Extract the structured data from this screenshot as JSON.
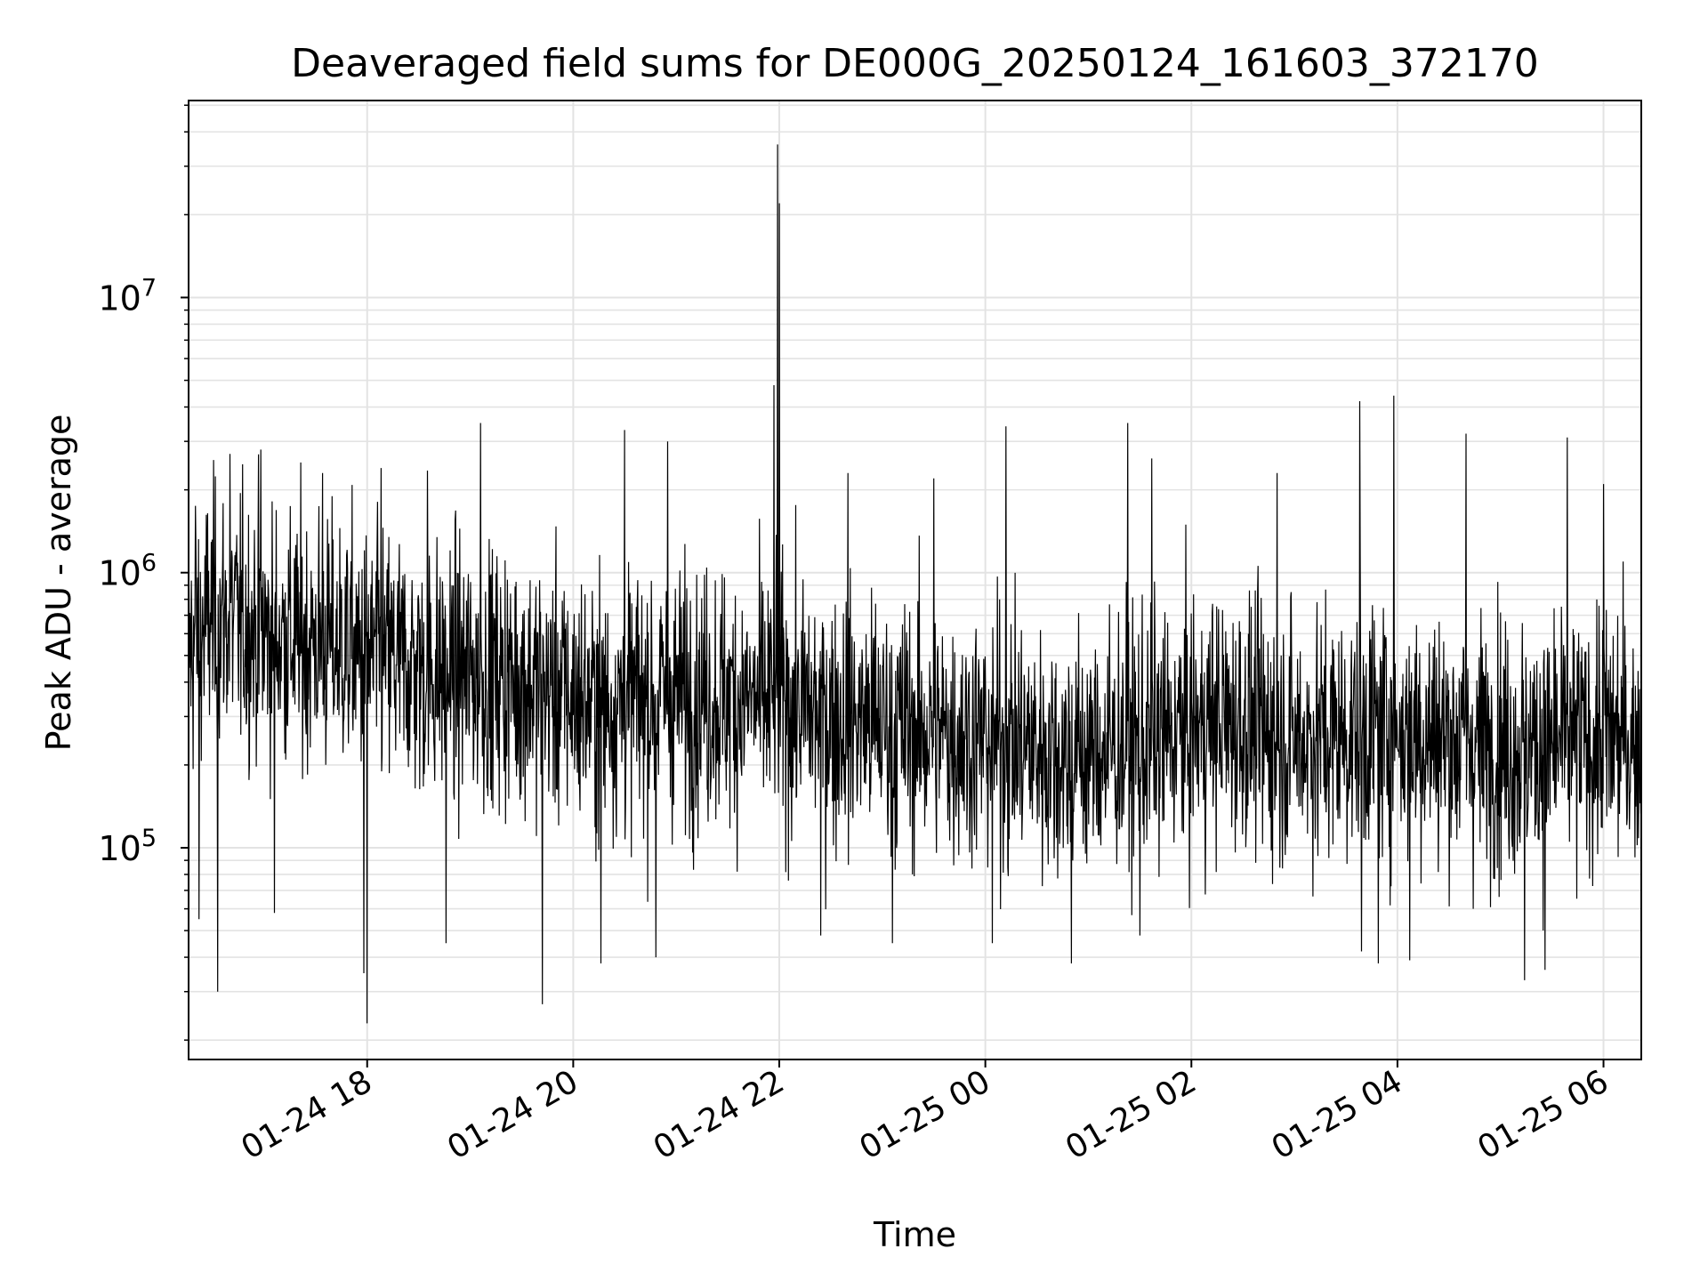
{
  "chart_data": {
    "type": "line",
    "title": "Deaveraged field sums for DE000G_20250124_161603_372170",
    "xlabel": "Time",
    "ylabel": "Peak ADU - average",
    "y_scale": "log",
    "ylim": [
      17000,
      52000000
    ],
    "xlim": [
      "2025-01-24 16:16",
      "2025-01-25 06:22"
    ],
    "grid": true,
    "line_color": "#000000",
    "grid_color": "#e3e3e3",
    "x_ticks": [
      {
        "label": "01-24 18",
        "value": "2025-01-24 18:00"
      },
      {
        "label": "01-24 20",
        "value": "2025-01-24 20:00"
      },
      {
        "label": "01-24 22",
        "value": "2025-01-24 22:00"
      },
      {
        "label": "01-25 00",
        "value": "2025-01-25 00:00"
      },
      {
        "label": "01-25 02",
        "value": "2025-01-25 02:00"
      },
      {
        "label": "01-25 04",
        "value": "2025-01-25 04:00"
      },
      {
        "label": "01-25 06",
        "value": "2025-01-25 06:00"
      }
    ],
    "y_ticks": [
      {
        "base": "10",
        "exp": "5",
        "value": 100000
      },
      {
        "base": "10",
        "exp": "6",
        "value": 1000000
      },
      {
        "base": "10",
        "exp": "7",
        "value": 10000000
      }
    ],
    "series": [
      {
        "points": [
          [
            "2025-01-24 16:16",
            520000
          ],
          [
            "2025-01-24 16:30",
            700000
          ],
          [
            "2025-01-24 16:45",
            650000
          ],
          [
            "2025-01-24 17:00",
            600000
          ],
          [
            "2025-01-24 17:15",
            580000
          ],
          [
            "2025-01-24 17:30",
            560000
          ],
          [
            "2025-01-24 17:45",
            540000
          ],
          [
            "2025-01-24 18:00",
            500000
          ],
          [
            "2025-01-24 18:15",
            480000
          ],
          [
            "2025-01-24 18:30",
            450000
          ],
          [
            "2025-01-24 18:45",
            430000
          ],
          [
            "2025-01-24 19:00",
            420000
          ],
          [
            "2025-01-24 19:15",
            420000
          ],
          [
            "2025-01-24 19:30",
            400000
          ],
          [
            "2025-01-24 19:45",
            380000
          ],
          [
            "2025-01-24 20:00",
            350000
          ],
          [
            "2025-01-24 20:15",
            330000
          ],
          [
            "2025-01-24 20:30",
            340000
          ],
          [
            "2025-01-24 20:45",
            350000
          ],
          [
            "2025-01-24 21:00",
            360000
          ],
          [
            "2025-01-24 21:15",
            360000
          ],
          [
            "2025-01-24 21:30",
            350000
          ],
          [
            "2025-01-24 21:45",
            340000
          ],
          [
            "2025-01-24 22:00",
            330000
          ],
          [
            "2025-01-24 22:15",
            320000
          ],
          [
            "2025-01-24 22:30",
            300000
          ],
          [
            "2025-01-24 22:45",
            290000
          ],
          [
            "2025-01-24 23:00",
            280000
          ],
          [
            "2025-01-24 23:15",
            270000
          ],
          [
            "2025-01-24 23:30",
            260000
          ],
          [
            "2025-01-24 23:45",
            260000
          ],
          [
            "2025-01-25 00:00",
            250000
          ],
          [
            "2025-01-25 00:15",
            240000
          ],
          [
            "2025-01-25 00:30",
            230000
          ],
          [
            "2025-01-25 00:45",
            220000
          ],
          [
            "2025-01-25 01:00",
            220000
          ],
          [
            "2025-01-25 01:15",
            230000
          ],
          [
            "2025-01-25 01:30",
            240000
          ],
          [
            "2025-01-25 01:45",
            250000
          ],
          [
            "2025-01-25 02:00",
            270000
          ],
          [
            "2025-01-25 02:15",
            290000
          ],
          [
            "2025-01-25 02:30",
            280000
          ],
          [
            "2025-01-25 02:45",
            260000
          ],
          [
            "2025-01-25 03:00",
            250000
          ],
          [
            "2025-01-25 03:15",
            250000
          ],
          [
            "2025-01-25 03:30",
            260000
          ],
          [
            "2025-01-25 03:45",
            270000
          ],
          [
            "2025-01-25 04:00",
            270000
          ],
          [
            "2025-01-25 04:15",
            260000
          ],
          [
            "2025-01-25 04:30",
            250000
          ],
          [
            "2025-01-25 04:45",
            240000
          ],
          [
            "2025-01-25 05:00",
            240000
          ],
          [
            "2025-01-25 05:15",
            230000
          ],
          [
            "2025-01-25 05:30",
            230000
          ],
          [
            "2025-01-25 05:45",
            240000
          ],
          [
            "2025-01-25 06:00",
            250000
          ],
          [
            "2025-01-25 06:15",
            250000
          ],
          [
            "2025-01-25 06:22",
            250000
          ]
        ],
        "spikes": [
          [
            "2025-01-24 16:20",
            1750000
          ],
          [
            "2025-01-24 16:22",
            55000
          ],
          [
            "2025-01-24 16:33",
            30000
          ],
          [
            "2025-01-24 16:40",
            2700000
          ],
          [
            "2025-01-24 16:58",
            2800000
          ],
          [
            "2025-01-24 17:06",
            58000
          ],
          [
            "2025-01-24 17:34",
            2300000
          ],
          [
            "2025-01-24 17:58",
            35000
          ],
          [
            "2025-01-24 18:00",
            23000
          ],
          [
            "2025-01-24 18:08",
            2400000
          ],
          [
            "2025-01-24 18:35",
            2350000
          ],
          [
            "2025-01-24 18:46",
            45000
          ],
          [
            "2025-01-24 19:06",
            3500000
          ],
          [
            "2025-01-24 19:42",
            27000
          ],
          [
            "2025-01-24 20:16",
            38000
          ],
          [
            "2025-01-24 20:30",
            3300000
          ],
          [
            "2025-01-24 20:55",
            3000000
          ],
          [
            "2025-01-24 20:48",
            40000
          ],
          [
            "2025-01-24 21:57",
            4800000
          ],
          [
            "2025-01-24 21:59",
            36000000
          ],
          [
            "2025-01-24 22:00",
            22000000
          ],
          [
            "2025-01-24 22:24",
            48000
          ],
          [
            "2025-01-24 22:40",
            2300000
          ],
          [
            "2025-01-24 23:06",
            45000
          ],
          [
            "2025-01-24 23:30",
            2200000
          ],
          [
            "2025-01-25 00:04",
            45000
          ],
          [
            "2025-01-25 00:12",
            3400000
          ],
          [
            "2025-01-25 00:50",
            38000
          ],
          [
            "2025-01-25 01:23",
            3500000
          ],
          [
            "2025-01-25 01:30",
            48000
          ],
          [
            "2025-01-25 01:37",
            2600000
          ],
          [
            "2025-01-25 02:50",
            2300000
          ],
          [
            "2025-01-25 03:38",
            4200000
          ],
          [
            "2025-01-25 03:39",
            42000
          ],
          [
            "2025-01-25 03:49",
            38000
          ],
          [
            "2025-01-25 03:58",
            4400000
          ],
          [
            "2025-01-25 04:07",
            39000
          ],
          [
            "2025-01-25 04:40",
            3200000
          ],
          [
            "2025-01-25 05:14",
            33000
          ],
          [
            "2025-01-25 05:26",
            36000
          ],
          [
            "2025-01-25 05:39",
            3100000
          ],
          [
            "2025-01-25 06:00",
            2100000
          ]
        ]
      }
    ]
  }
}
